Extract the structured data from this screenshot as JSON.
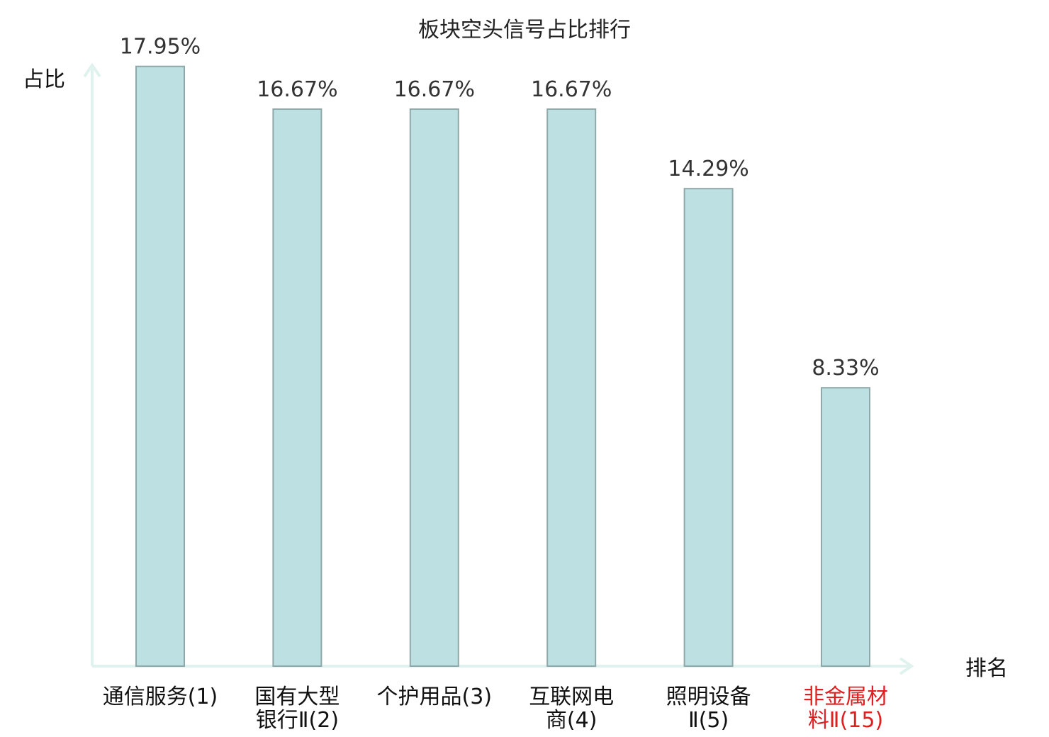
{
  "chart_data": {
    "type": "bar",
    "title": "板块空头信号占比排行",
    "ylabel": "占比",
    "xlabel": "排名",
    "ylim": [
      0,
      18.9
    ],
    "categories": [
      {
        "name_lines": [
          "通信服务"
        ],
        "rank": "(1)",
        "highlight": false
      },
      {
        "name_lines": [
          "国有大型",
          "银行Ⅱ"
        ],
        "rank": "(2)",
        "highlight": false
      },
      {
        "name_lines": [
          "个护用品"
        ],
        "rank": "(3)",
        "highlight": false
      },
      {
        "name_lines": [
          "互联网电",
          "商"
        ],
        "rank": "(4)",
        "highlight": false
      },
      {
        "name_lines": [
          "照明设备",
          "Ⅱ"
        ],
        "rank": "(5)",
        "highlight": false
      },
      {
        "name_lines": [
          "非金属材",
          "料Ⅱ"
        ],
        "rank": "(15)",
        "highlight": true
      }
    ],
    "values": [
      17.95,
      16.67,
      16.67,
      16.67,
      14.29,
      8.33
    ],
    "value_labels": [
      "17.95%",
      "16.67%",
      "16.67%",
      "16.67%",
      "14.29%",
      "8.33%"
    ],
    "grid": false,
    "legend": "none"
  }
}
